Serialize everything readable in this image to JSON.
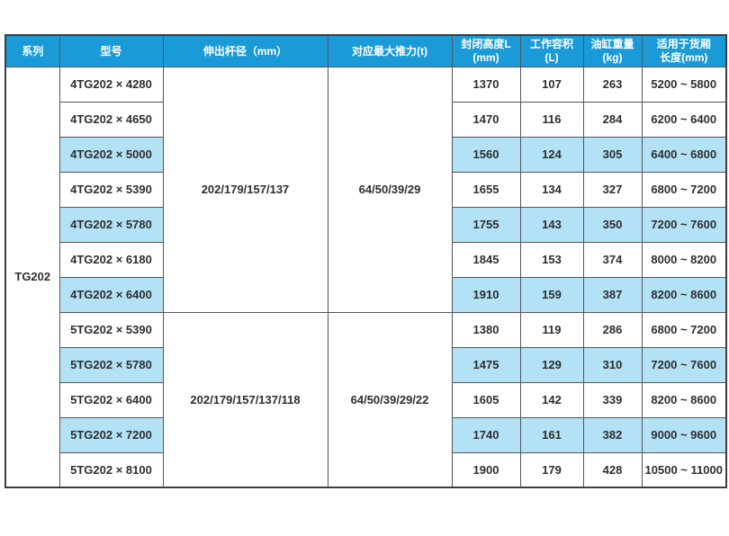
{
  "colors": {
    "header_bg": "#1a9ad7",
    "header_text": "#ffffff",
    "row_highlight": "#b3e1f5",
    "grid_border": "#54555a",
    "outer_border": "#3d3e40",
    "body_text": "#2e2e30"
  },
  "table": {
    "series_label": "TG202",
    "headers": [
      {
        "key": "series",
        "lines": [
          "系列"
        ]
      },
      {
        "key": "model",
        "lines": [
          "型号"
        ]
      },
      {
        "key": "rod-diameter",
        "lines": [
          "伸出杆径（mm）"
        ]
      },
      {
        "key": "max-thrust",
        "lines": [
          "对应最大推力(t)"
        ]
      },
      {
        "key": "closed-height",
        "lines": [
          "封闭高度L",
          "(mm)"
        ]
      },
      {
        "key": "working-volume",
        "lines": [
          "工作容积 (L)"
        ]
      },
      {
        "key": "cylinder-weight",
        "lines": [
          "油缸重量(kg)"
        ]
      },
      {
        "key": "cargo-length",
        "lines": [
          "适用于货厢",
          "长度(mm)"
        ]
      }
    ],
    "groups": [
      {
        "rod_diameters": "202/179/157/137",
        "max_thrust": "64/50/39/29",
        "rows": [
          {
            "model": "4TG202 × 4280",
            "closed_height": "1370",
            "working_volume": "107",
            "cylinder_weight": "263",
            "cargo_length": "5200 ~ 5800",
            "highlight": false
          },
          {
            "model": "4TG202 × 4650",
            "closed_height": "1470",
            "working_volume": "116",
            "cylinder_weight": "284",
            "cargo_length": "6200 ~ 6400",
            "highlight": false
          },
          {
            "model": "4TG202 × 5000",
            "closed_height": "1560",
            "working_volume": "124",
            "cylinder_weight": "305",
            "cargo_length": "6400 ~ 6800",
            "highlight": true
          },
          {
            "model": "4TG202 × 5390",
            "closed_height": "1655",
            "working_volume": "134",
            "cylinder_weight": "327",
            "cargo_length": "6800 ~ 7200",
            "highlight": false
          },
          {
            "model": "4TG202 × 5780",
            "closed_height": "1755",
            "working_volume": "143",
            "cylinder_weight": "350",
            "cargo_length": "7200 ~ 7600",
            "highlight": true
          },
          {
            "model": "4TG202 × 6180",
            "closed_height": "1845",
            "working_volume": "153",
            "cylinder_weight": "374",
            "cargo_length": "8000 ~ 8200",
            "highlight": false
          },
          {
            "model": "4TG202 × 6400",
            "closed_height": "1910",
            "working_volume": "159",
            "cylinder_weight": "387",
            "cargo_length": "8200 ~ 8600",
            "highlight": true
          }
        ]
      },
      {
        "rod_diameters": "202/179/157/137/118",
        "max_thrust": "64/50/39/29/22",
        "rows": [
          {
            "model": "5TG202 × 5390",
            "closed_height": "1380",
            "working_volume": "119",
            "cylinder_weight": "286",
            "cargo_length": "6800 ~ 7200",
            "highlight": false
          },
          {
            "model": "5TG202 × 5780",
            "closed_height": "1475",
            "working_volume": "129",
            "cylinder_weight": "310",
            "cargo_length": "7200 ~ 7600",
            "highlight": true
          },
          {
            "model": "5TG202 × 6400",
            "closed_height": "1605",
            "working_volume": "142",
            "cylinder_weight": "339",
            "cargo_length": "8200 ~ 8600",
            "highlight": false
          },
          {
            "model": "5TG202 × 7200",
            "closed_height": "1740",
            "working_volume": "161",
            "cylinder_weight": "382",
            "cargo_length": "9000 ~ 9600",
            "highlight": true
          },
          {
            "model": "5TG202 × 8100",
            "closed_height": "1900",
            "working_volume": "179",
            "cylinder_weight": "428",
            "cargo_length": "10500 ~ 11000",
            "highlight": false
          }
        ]
      }
    ]
  }
}
